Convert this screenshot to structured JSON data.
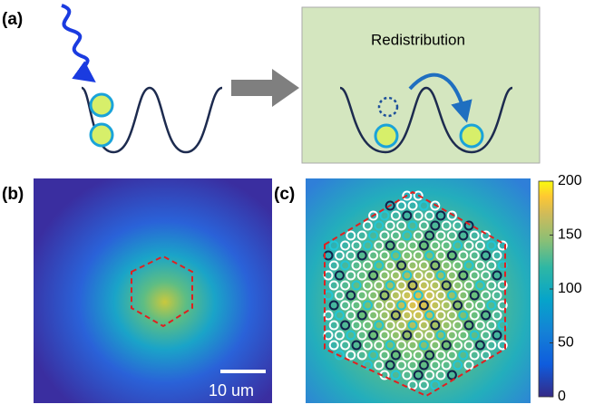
{
  "panels": {
    "a": {
      "label": "(a)",
      "title": "Redistribution"
    },
    "b": {
      "label": "(b)",
      "scale_bar": "10 um"
    },
    "c": {
      "label": "(c)"
    }
  },
  "colorbar": {
    "lim": [
      0,
      200
    ],
    "ticks": [
      0,
      50,
      100,
      150,
      200
    ]
  }
}
